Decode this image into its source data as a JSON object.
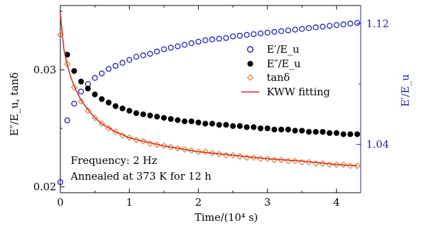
{
  "chart_data": {
    "type": "scatter",
    "x_axis": {
      "label": "Time/(10⁴ s)",
      "range": [
        0,
        4.35
      ],
      "ticks": [
        0,
        1,
        2,
        3,
        4
      ]
    },
    "y_left": {
      "label": "E″/E_u, tanδ",
      "range": [
        0.0195,
        0.0355
      ],
      "ticks": [
        0.02,
        0.03
      ]
    },
    "y_right": {
      "label": "E′/E_u",
      "range": [
        1.008,
        1.132
      ],
      "ticks": [
        1.04,
        1.12
      ],
      "color": "#1a1adc"
    },
    "series": [
      {
        "name": "E′/E_u",
        "axis": "right",
        "marker": "open-circle",
        "color": "#1a1adc",
        "x": [
          0.0,
          0.1,
          0.2,
          0.3,
          0.4,
          0.5,
          0.6,
          0.7,
          0.8,
          0.9,
          1.0,
          1.1,
          1.2,
          1.3,
          1.4,
          1.5,
          1.6,
          1.7,
          1.8,
          1.9,
          2.0,
          2.1,
          2.2,
          2.3,
          2.4,
          2.5,
          2.6,
          2.7,
          2.8,
          2.9,
          3.0,
          3.1,
          3.2,
          3.3,
          3.4,
          3.5,
          3.6,
          3.7,
          3.8,
          3.9,
          4.0,
          4.1,
          4.2,
          4.3
        ],
        "y": [
          1.015,
          1.056,
          1.067,
          1.075,
          1.08,
          1.084,
          1.087,
          1.09,
          1.092,
          1.094,
          1.096,
          1.098,
          1.099,
          1.1,
          1.1015,
          1.103,
          1.104,
          1.105,
          1.106,
          1.107,
          1.108,
          1.109,
          1.1095,
          1.11,
          1.1105,
          1.1115,
          1.112,
          1.1125,
          1.113,
          1.1135,
          1.114,
          1.1145,
          1.115,
          1.1155,
          1.116,
          1.1165,
          1.117,
          1.1175,
          1.118,
          1.1185,
          1.119,
          1.1195,
          1.12,
          1.1205
        ]
      },
      {
        "name": "E″/E_u",
        "axis": "left",
        "marker": "filled-circle",
        "color": "#000000",
        "x": [
          0.1,
          0.2,
          0.3,
          0.4,
          0.5,
          0.6,
          0.7,
          0.8,
          0.9,
          1.0,
          1.1,
          1.2,
          1.3,
          1.4,
          1.5,
          1.6,
          1.7,
          1.8,
          1.9,
          2.0,
          2.1,
          2.2,
          2.3,
          2.4,
          2.5,
          2.6,
          2.7,
          2.8,
          2.9,
          3.0,
          3.1,
          3.2,
          3.3,
          3.4,
          3.5,
          3.6,
          3.7,
          3.8,
          3.9,
          4.0,
          4.1,
          4.2,
          4.3
        ],
        "y": [
          0.0313,
          0.0299,
          0.029,
          0.0284,
          0.0279,
          0.0275,
          0.0272,
          0.0269,
          0.0267,
          0.0265,
          0.0263,
          0.0262,
          0.0261,
          0.026,
          0.0259,
          0.0258,
          0.0257,
          0.0256,
          0.0256,
          0.0255,
          0.0254,
          0.0254,
          0.0253,
          0.0253,
          0.0252,
          0.0252,
          0.0251,
          0.0251,
          0.025,
          0.025,
          0.0249,
          0.0249,
          0.0249,
          0.0248,
          0.0248,
          0.0247,
          0.0247,
          0.0247,
          0.0246,
          0.0246,
          0.0245,
          0.0245,
          0.0245
        ]
      },
      {
        "name": "tanδ",
        "axis": "left",
        "marker": "open-diamond",
        "color": "#e8822a",
        "x": [
          0.0,
          0.1,
          0.2,
          0.3,
          0.4,
          0.5,
          0.6,
          0.7,
          0.8,
          0.9,
          1.0,
          1.1,
          1.2,
          1.3,
          1.4,
          1.5,
          1.6,
          1.7,
          1.8,
          1.9,
          2.0,
          2.1,
          2.2,
          2.3,
          2.4,
          2.5,
          2.6,
          2.7,
          2.8,
          2.9,
          3.0,
          3.1,
          3.2,
          3.3,
          3.4,
          3.5,
          3.6,
          3.7,
          3.8,
          3.9,
          4.0,
          4.1,
          4.2,
          4.3
        ],
        "y": [
          0.033,
          0.0305,
          0.0285,
          0.0273,
          0.0265,
          0.0259,
          0.0254,
          0.025,
          0.0247,
          0.0244,
          0.0242,
          0.024,
          0.0239,
          0.0237,
          0.0236,
          0.0235,
          0.0234,
          0.0233,
          0.0232,
          0.0231,
          0.023,
          0.023,
          0.0229,
          0.0228,
          0.0227,
          0.0227,
          0.0226,
          0.0225,
          0.0225,
          0.0224,
          0.0224,
          0.0223,
          0.0223,
          0.0222,
          0.0222,
          0.0221,
          0.0221,
          0.022,
          0.022,
          0.0219,
          0.0219,
          0.0219,
          0.0218,
          0.0218
        ]
      },
      {
        "name": "KWW fitting",
        "axis": "left",
        "marker": "line",
        "color": "#e02020",
        "x": [
          0.0,
          0.05,
          0.1,
          0.15,
          0.2,
          0.3,
          0.4,
          0.5,
          0.6,
          0.8,
          1.0,
          1.2,
          1.5,
          1.8,
          2.0,
          2.5,
          3.0,
          3.5,
          4.0,
          4.3
        ],
        "y": [
          0.0348,
          0.0318,
          0.0304,
          0.0294,
          0.0286,
          0.0274,
          0.0266,
          0.0259,
          0.0254,
          0.0247,
          0.0242,
          0.0239,
          0.0235,
          0.0232,
          0.023,
          0.0227,
          0.0224,
          0.0222,
          0.0219,
          0.0218
        ]
      }
    ],
    "legend": {
      "placement": "top-right",
      "entries": [
        "E′/E_u",
        "E″/E_u",
        "tanδ",
        "KWW fitting"
      ]
    },
    "annotations": [
      "Frequency: 2 Hz",
      "Annealed at 373 K for 12 h"
    ],
    "grid": false
  }
}
